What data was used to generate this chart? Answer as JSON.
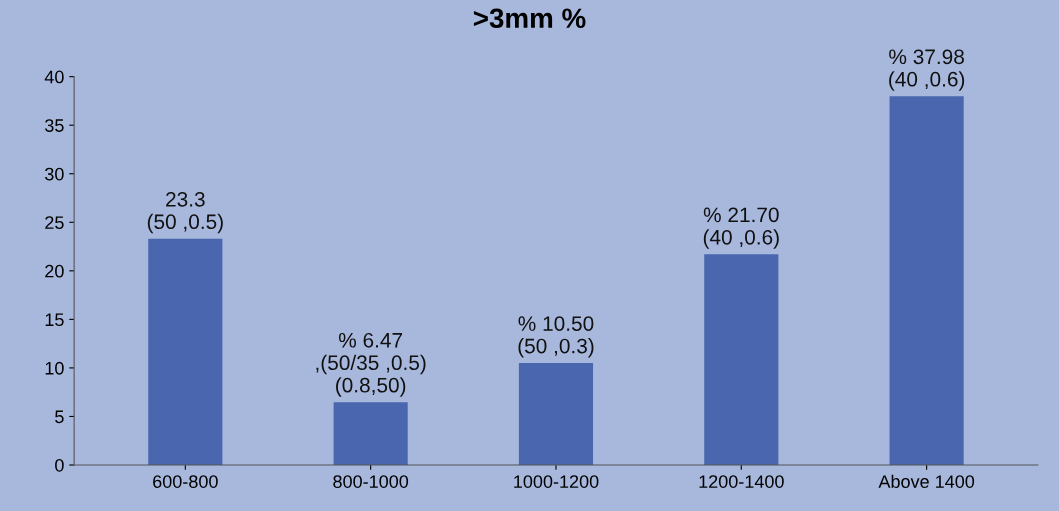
{
  "chart_data": {
    "type": "bar",
    "title": ">3mm %",
    "categories": [
      "600-800",
      "800-1000",
      "1000-1200",
      "1200-1400",
      "Above 1400"
    ],
    "values": [
      23.3,
      6.47,
      10.5,
      21.7,
      37.98
    ],
    "color": "#4a66ae",
    "value_labels": [
      "23.3\n(50 ,0.5)",
      "% 6.47\n,(50/35 ,0.5)\n(0.8,50)",
      "% 10.50\n(50 ,0.3)",
      "% 21.70\n(40 ,0.6)",
      "% 37.98\n(40 ,0.6)"
    ],
    "ylim": [
      0,
      40
    ],
    "yticks": [
      0,
      5,
      10,
      15,
      20,
      25,
      30,
      35,
      40
    ],
    "grid": false,
    "legend": false
  }
}
